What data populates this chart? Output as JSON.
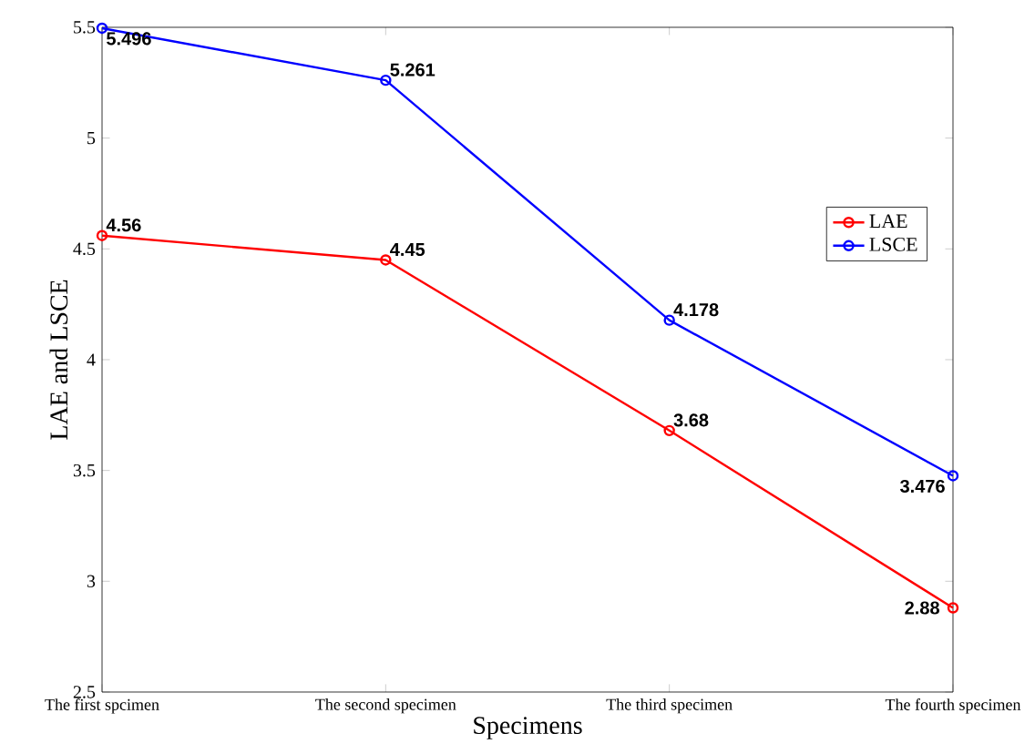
{
  "chart_data": {
    "type": "line",
    "xlabel": "Specimens",
    "ylabel": "LAE and LSCE",
    "categories": [
      "The first spcimen",
      "The second specimen",
      "The third specimen",
      "The fourth specimen"
    ],
    "series": [
      {
        "name": "LAE",
        "color": "#ff0000",
        "values": [
          4.56,
          4.45,
          3.68,
          2.88
        ]
      },
      {
        "name": "LSCE",
        "color": "#0000ff",
        "values": [
          5.496,
          5.261,
          4.178,
          3.476
        ]
      }
    ],
    "ylim": [
      2.5,
      5.5
    ],
    "yticks": [
      2.5,
      3,
      3.5,
      4,
      4.5,
      5,
      5.5
    ],
    "marker": "circle",
    "data_labels": true,
    "legend": "right",
    "grid": false
  }
}
